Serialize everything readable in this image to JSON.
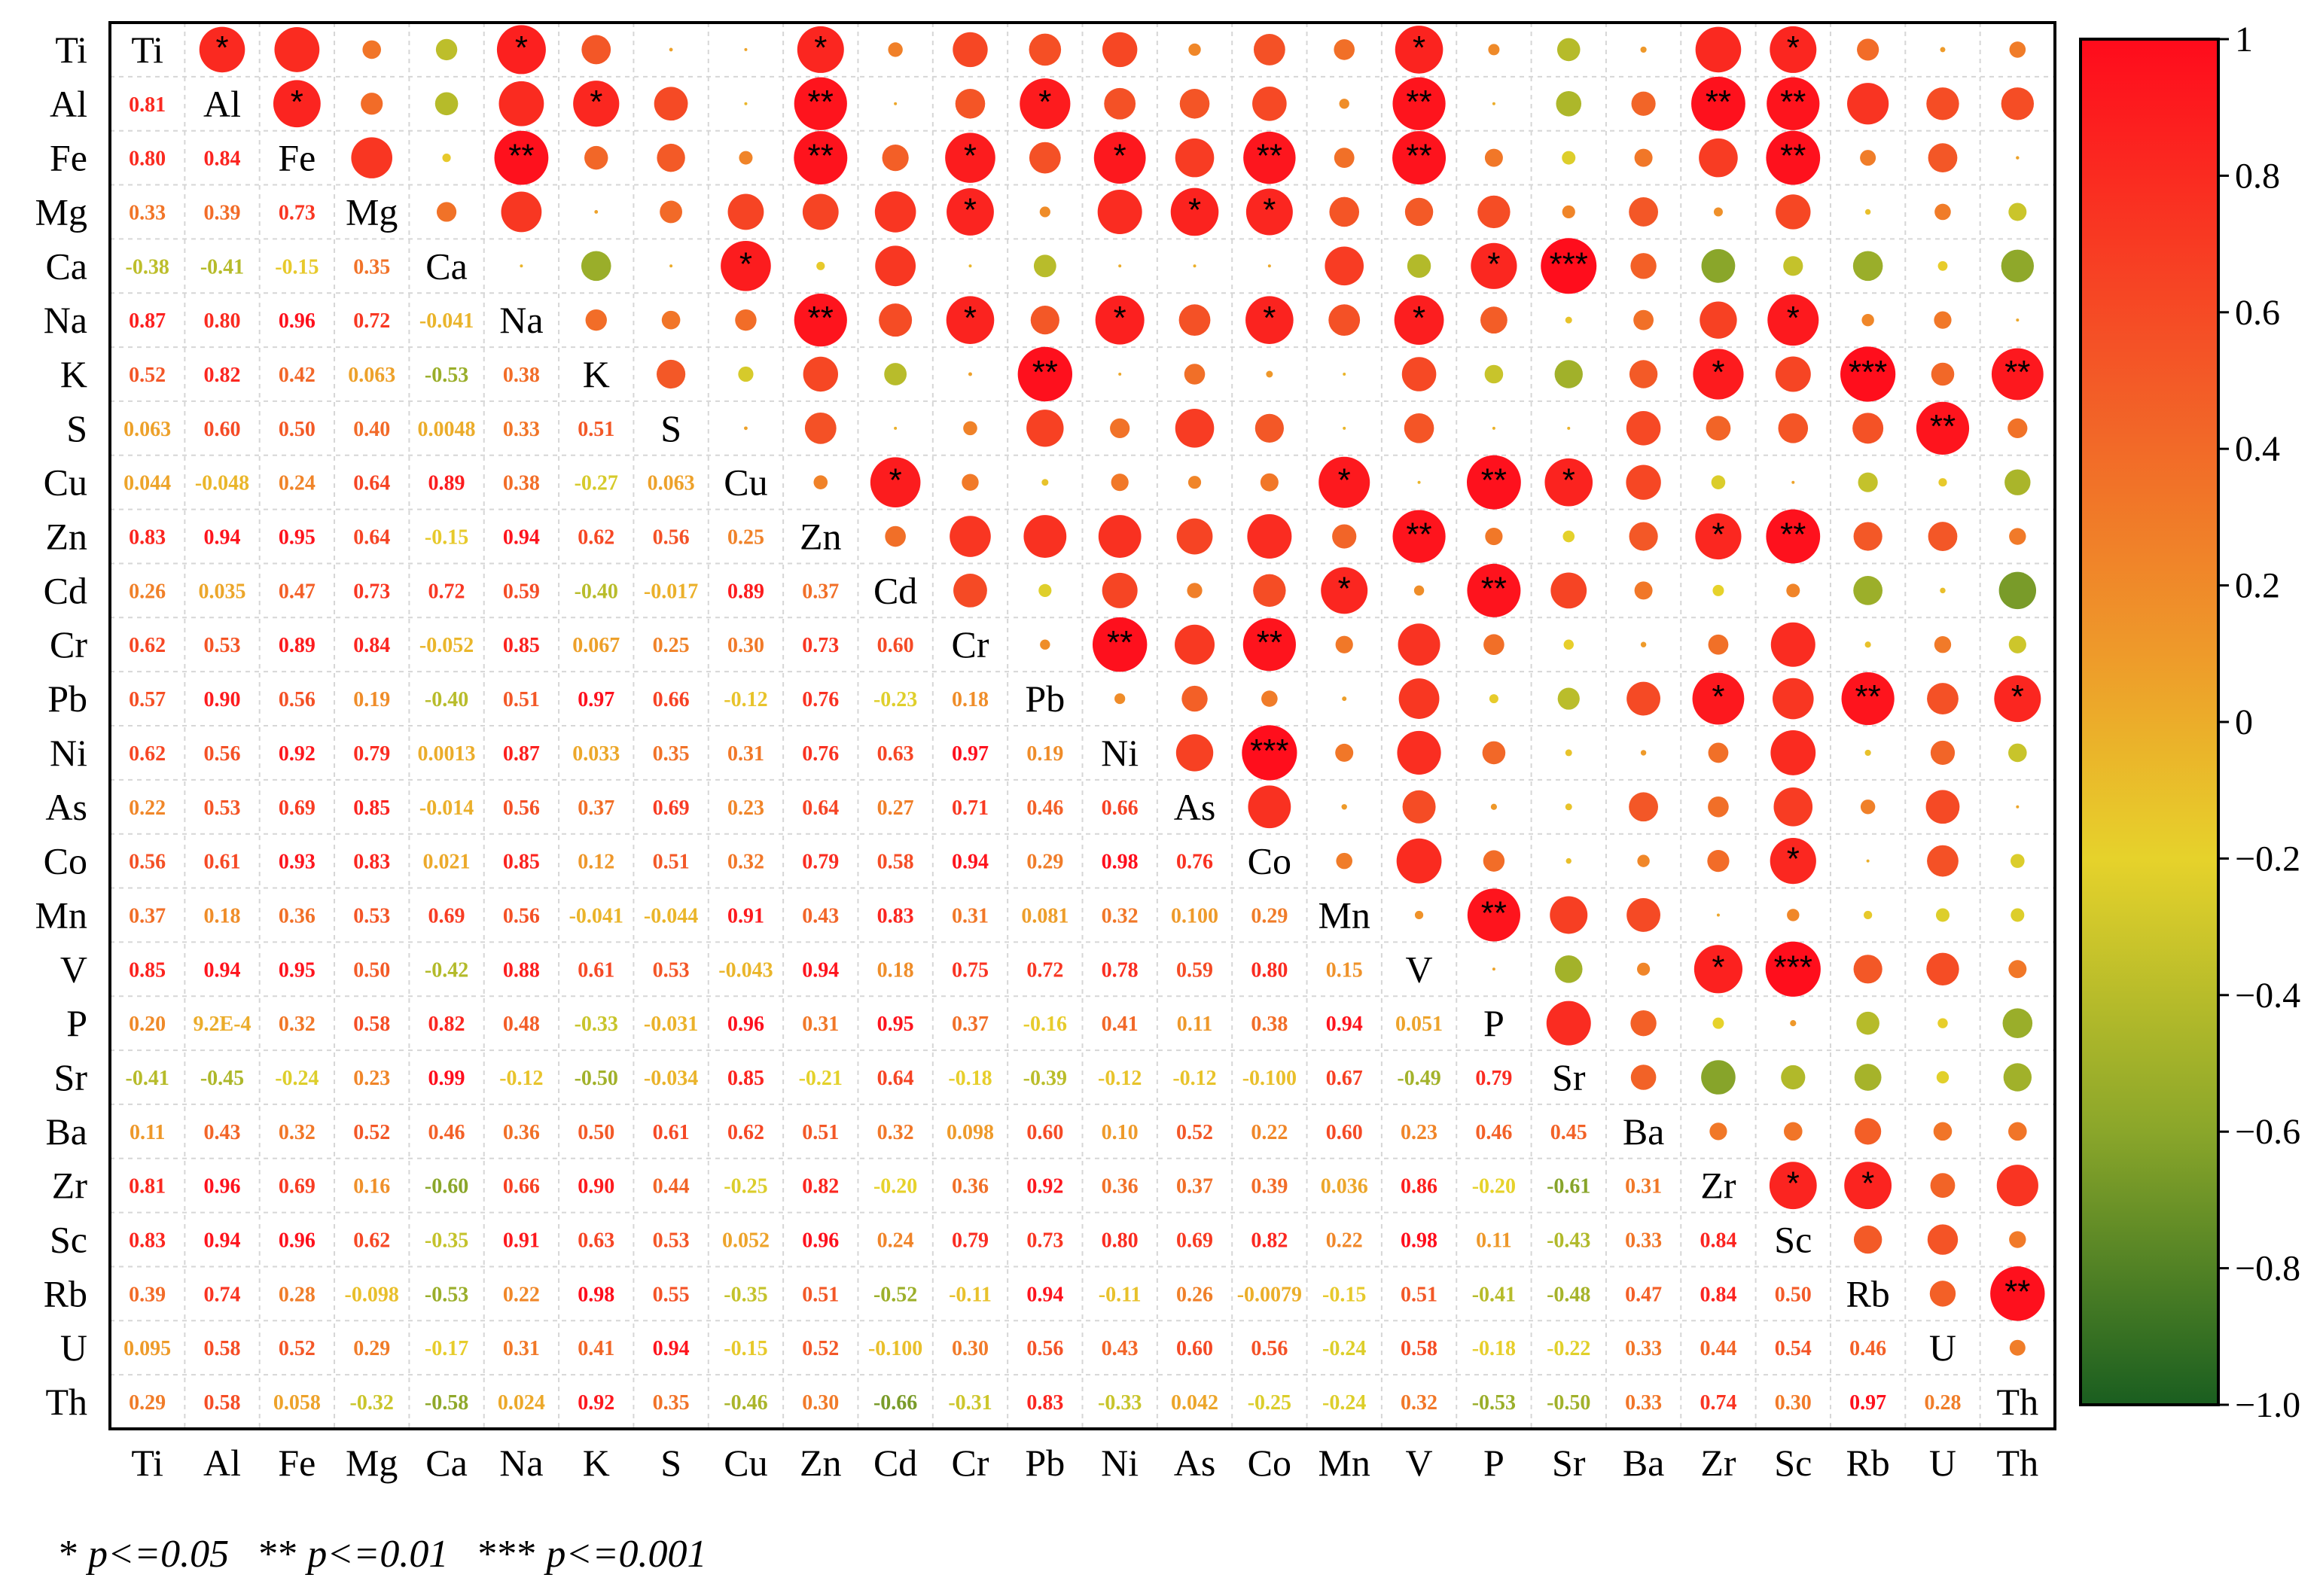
{
  "chart_data": {
    "type": "correlation-matrix",
    "variables": [
      "Ti",
      "Al",
      "Fe",
      "Mg",
      "Ca",
      "Na",
      "K",
      "S",
      "Cu",
      "Zn",
      "Cd",
      "Cr",
      "Pb",
      "Ni",
      "As",
      "Co",
      "Mn",
      "V",
      "P",
      "Sr",
      "Ba",
      "Zr",
      "Sc",
      "Rb",
      "U",
      "Th"
    ],
    "lower_values": [
      [],
      [
        "0.81"
      ],
      [
        "0.80",
        "0.84"
      ],
      [
        "0.33",
        "0.39",
        "0.73"
      ],
      [
        "-0.38",
        "-0.41",
        "-0.15",
        "0.35"
      ],
      [
        "0.87",
        "0.80",
        "0.96",
        "0.72",
        "-0.041"
      ],
      [
        "0.52",
        "0.82",
        "0.42",
        "0.063",
        "-0.53",
        "0.38"
      ],
      [
        "0.063",
        "0.60",
        "0.50",
        "0.40",
        "0.0048",
        "0.33",
        "0.51"
      ],
      [
        "0.044",
        "-0.048",
        "0.24",
        "0.64",
        "0.89",
        "0.38",
        "-0.27",
        "0.063"
      ],
      [
        "0.83",
        "0.94",
        "0.95",
        "0.64",
        "-0.15",
        "0.94",
        "0.62",
        "0.56",
        "0.25"
      ],
      [
        "0.26",
        "0.035",
        "0.47",
        "0.73",
        "0.72",
        "0.59",
        "-0.40",
        "-0.017",
        "0.89",
        "0.37"
      ],
      [
        "0.62",
        "0.53",
        "0.89",
        "0.84",
        "-0.052",
        "0.85",
        "0.067",
        "0.25",
        "0.30",
        "0.73",
        "0.60"
      ],
      [
        "0.57",
        "0.90",
        "0.56",
        "0.19",
        "-0.40",
        "0.51",
        "0.97",
        "0.66",
        "-0.12",
        "0.76",
        "-0.23",
        "0.18"
      ],
      [
        "0.62",
        "0.56",
        "0.92",
        "0.79",
        "0.0013",
        "0.87",
        "0.033",
        "0.35",
        "0.31",
        "0.76",
        "0.63",
        "0.97",
        "0.19"
      ],
      [
        "0.22",
        "0.53",
        "0.69",
        "0.85",
        "-0.014",
        "0.56",
        "0.37",
        "0.69",
        "0.23",
        "0.64",
        "0.27",
        "0.71",
        "0.46",
        "0.66"
      ],
      [
        "0.56",
        "0.61",
        "0.93",
        "0.83",
        "0.021",
        "0.85",
        "0.12",
        "0.51",
        "0.32",
        "0.79",
        "0.58",
        "0.94",
        "0.29",
        "0.98",
        "0.76"
      ],
      [
        "0.37",
        "0.18",
        "0.36",
        "0.53",
        "0.69",
        "0.56",
        "-0.041",
        "-0.044",
        "0.91",
        "0.43",
        "0.83",
        "0.31",
        "0.081",
        "0.32",
        "0.100",
        "0.29"
      ],
      [
        "0.85",
        "0.94",
        "0.95",
        "0.50",
        "-0.42",
        "0.88",
        "0.61",
        "0.53",
        "-0.043",
        "0.94",
        "0.18",
        "0.75",
        "0.72",
        "0.78",
        "0.59",
        "0.80",
        "0.15"
      ],
      [
        "0.20",
        "9.2E-4",
        "0.32",
        "0.58",
        "0.82",
        "0.48",
        "-0.33",
        "-0.031",
        "0.96",
        "0.31",
        "0.95",
        "0.37",
        "-0.16",
        "0.41",
        "0.11",
        "0.38",
        "0.94",
        "0.051"
      ],
      [
        "-0.41",
        "-0.45",
        "-0.24",
        "0.23",
        "0.99",
        "-0.12",
        "-0.50",
        "-0.034",
        "0.85",
        "-0.21",
        "0.64",
        "-0.18",
        "-0.39",
        "-0.12",
        "-0.12",
        "-0.100",
        "0.67",
        "-0.49",
        "0.79"
      ],
      [
        "0.11",
        "0.43",
        "0.32",
        "0.52",
        "0.46",
        "0.36",
        "0.50",
        "0.61",
        "0.62",
        "0.51",
        "0.32",
        "0.098",
        "0.60",
        "0.10",
        "0.52",
        "0.22",
        "0.60",
        "0.23",
        "0.46",
        "0.45"
      ],
      [
        "0.81",
        "0.96",
        "0.69",
        "0.16",
        "-0.60",
        "0.66",
        "0.90",
        "0.44",
        "-0.25",
        "0.82",
        "-0.20",
        "0.36",
        "0.92",
        "0.36",
        "0.37",
        "0.39",
        "0.036",
        "0.86",
        "-0.20",
        "-0.61",
        "0.31"
      ],
      [
        "0.83",
        "0.94",
        "0.96",
        "0.62",
        "-0.35",
        "0.91",
        "0.63",
        "0.53",
        "0.052",
        "0.96",
        "0.24",
        "0.79",
        "0.73",
        "0.80",
        "0.69",
        "0.82",
        "0.22",
        "0.98",
        "0.11",
        "-0.43",
        "0.33",
        "0.84"
      ],
      [
        "0.39",
        "0.74",
        "0.28",
        "-0.098",
        "-0.53",
        "0.22",
        "0.98",
        "0.55",
        "-0.35",
        "0.51",
        "-0.52",
        "-0.11",
        "0.94",
        "-0.11",
        "0.26",
        "-0.0079",
        "-0.15",
        "0.51",
        "-0.41",
        "-0.48",
        "0.47",
        "0.84",
        "0.50"
      ],
      [
        "0.095",
        "0.58",
        "0.52",
        "0.29",
        "-0.17",
        "0.31",
        "0.41",
        "0.94",
        "-0.15",
        "0.52",
        "-0.100",
        "0.30",
        "0.56",
        "0.43",
        "0.60",
        "0.56",
        "-0.24",
        "0.58",
        "-0.18",
        "-0.22",
        "0.33",
        "0.44",
        "0.54",
        "0.46"
      ],
      [
        "0.29",
        "0.58",
        "0.058",
        "-0.32",
        "-0.58",
        "0.024",
        "0.92",
        "0.35",
        "-0.46",
        "0.30",
        "-0.66",
        "-0.31",
        "0.83",
        "-0.33",
        "0.042",
        "-0.25",
        "-0.24",
        "0.32",
        "-0.53",
        "-0.50",
        "0.33",
        "0.74",
        "0.30",
        "0.97",
        "0.28"
      ]
    ],
    "significance_marks": [
      [
        "Ti",
        "Al",
        "*"
      ],
      [
        "Ti",
        "Na",
        "*"
      ],
      [
        "Ti",
        "Zn",
        "*"
      ],
      [
        "Ti",
        "V",
        "*"
      ],
      [
        "Ti",
        "Sc",
        "*"
      ],
      [
        "Al",
        "Fe",
        "*"
      ],
      [
        "Al",
        "K",
        "*"
      ],
      [
        "Al",
        "Zn",
        "**"
      ],
      [
        "Al",
        "Pb",
        "*"
      ],
      [
        "Al",
        "V",
        "**"
      ],
      [
        "Al",
        "Zr",
        "**"
      ],
      [
        "Al",
        "Sc",
        "**"
      ],
      [
        "Fe",
        "Na",
        "**"
      ],
      [
        "Fe",
        "Zn",
        "**"
      ],
      [
        "Fe",
        "Cr",
        "*"
      ],
      [
        "Fe",
        "Ni",
        "*"
      ],
      [
        "Fe",
        "Co",
        "**"
      ],
      [
        "Fe",
        "V",
        "**"
      ],
      [
        "Fe",
        "Sc",
        "**"
      ],
      [
        "Mg",
        "Cr",
        "*"
      ],
      [
        "Mg",
        "As",
        "*"
      ],
      [
        "Mg",
        "Co",
        "*"
      ],
      [
        "Ca",
        "Cu",
        "*"
      ],
      [
        "Ca",
        "P",
        "*"
      ],
      [
        "Ca",
        "Sr",
        "***"
      ],
      [
        "Na",
        "Zn",
        "**"
      ],
      [
        "Na",
        "Cr",
        "*"
      ],
      [
        "Na",
        "Ni",
        "*"
      ],
      [
        "Na",
        "Co",
        "*"
      ],
      [
        "Na",
        "V",
        "*"
      ],
      [
        "Na",
        "Sc",
        "*"
      ],
      [
        "K",
        "Pb",
        "**"
      ],
      [
        "K",
        "Zr",
        "*"
      ],
      [
        "K",
        "Rb",
        "***"
      ],
      [
        "K",
        "Th",
        "**"
      ],
      [
        "S",
        "U",
        "**"
      ],
      [
        "Cu",
        "Cd",
        "*"
      ],
      [
        "Cu",
        "Mn",
        "*"
      ],
      [
        "Cu",
        "P",
        "**"
      ],
      [
        "Cu",
        "Sr",
        "*"
      ],
      [
        "Zn",
        "V",
        "**"
      ],
      [
        "Zn",
        "Zr",
        "*"
      ],
      [
        "Zn",
        "Sc",
        "**"
      ],
      [
        "Cd",
        "Mn",
        "*"
      ],
      [
        "Cd",
        "P",
        "**"
      ],
      [
        "Cr",
        "Ni",
        "**"
      ],
      [
        "Cr",
        "Co",
        "**"
      ],
      [
        "Pb",
        "Zr",
        "*"
      ],
      [
        "Pb",
        "Rb",
        "**"
      ],
      [
        "Pb",
        "Th",
        "*"
      ],
      [
        "Ni",
        "Co",
        "***"
      ],
      [
        "Co",
        "Sc",
        "*"
      ],
      [
        "Mn",
        "P",
        "**"
      ],
      [
        "V",
        "Zr",
        "*"
      ],
      [
        "V",
        "Sc",
        "***"
      ],
      [
        "Zr",
        "Sc",
        "*"
      ],
      [
        "Zr",
        "Rb",
        "*"
      ],
      [
        "Rb",
        "Th",
        "**"
      ]
    ],
    "colorbar": {
      "range": [
        -1.0,
        1
      ],
      "tick_labels": [
        "1",
        "0.8",
        "0.6",
        "0.4",
        "0.2",
        "0",
        "−0.2",
        "−0.4",
        "−0.6",
        "−0.8",
        "−1.0"
      ],
      "colors": {
        "low": "#1a5e20",
        "mid_low": "#8aa62a",
        "mid": "#e6d22b",
        "mid_high": "#ee8a2a",
        "high": "#ff0b1c"
      }
    }
  },
  "legend": {
    "p1_stars": "*",
    "p1_text": "p<=0.05",
    "p2_stars": "**",
    "p2_text": "p<=0.01",
    "p3_stars": "***",
    "p3_text": "p<=0.001"
  }
}
